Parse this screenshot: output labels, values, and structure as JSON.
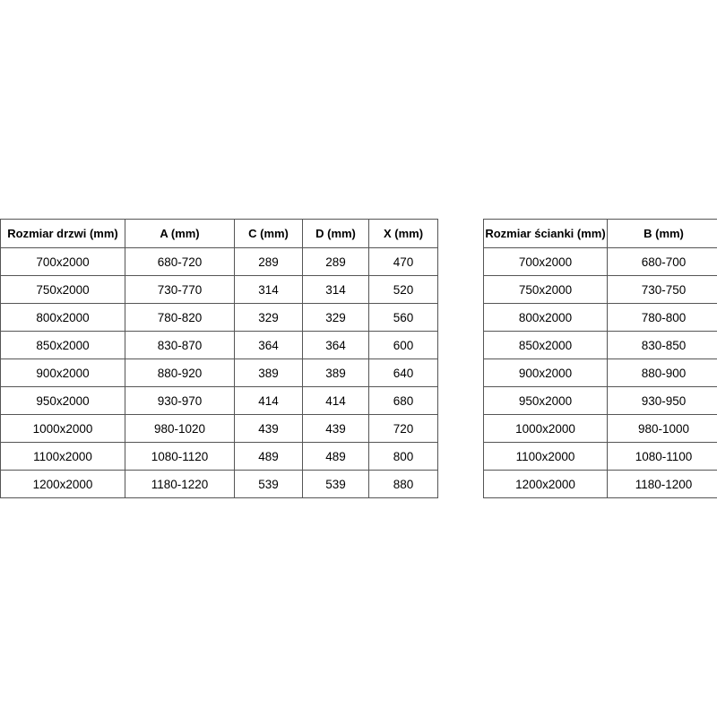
{
  "door_table": {
    "headers": [
      "Rozmiar drzwi (mm)",
      "A (mm)",
      "C (mm)",
      "D (mm)",
      "X (mm)"
    ],
    "rows": [
      [
        "700x2000",
        "680-720",
        "289",
        "289",
        "470"
      ],
      [
        "750x2000",
        "730-770",
        "314",
        "314",
        "520"
      ],
      [
        "800x2000",
        "780-820",
        "329",
        "329",
        "560"
      ],
      [
        "850x2000",
        "830-870",
        "364",
        "364",
        "600"
      ],
      [
        "900x2000",
        "880-920",
        "389",
        "389",
        "640"
      ],
      [
        "950x2000",
        "930-970",
        "414",
        "414",
        "680"
      ],
      [
        "1000x2000",
        "980-1020",
        "439",
        "439",
        "720"
      ],
      [
        "1100x2000",
        "1080-1120",
        "489",
        "489",
        "800"
      ],
      [
        "1200x2000",
        "1180-1220",
        "539",
        "539",
        "880"
      ]
    ]
  },
  "wall_table": {
    "headers": [
      "Rozmiar ścianki (mm)",
      "B (mm)"
    ],
    "rows": [
      [
        "700x2000",
        "680-700"
      ],
      [
        "750x2000",
        "730-750"
      ],
      [
        "800x2000",
        "780-800"
      ],
      [
        "850x2000",
        "830-850"
      ],
      [
        "900x2000",
        "880-900"
      ],
      [
        "950x2000",
        "930-950"
      ],
      [
        "1000x2000",
        "980-1000"
      ],
      [
        "1100x2000",
        "1080-1100"
      ],
      [
        "1200x2000",
        "1180-1200"
      ]
    ]
  }
}
